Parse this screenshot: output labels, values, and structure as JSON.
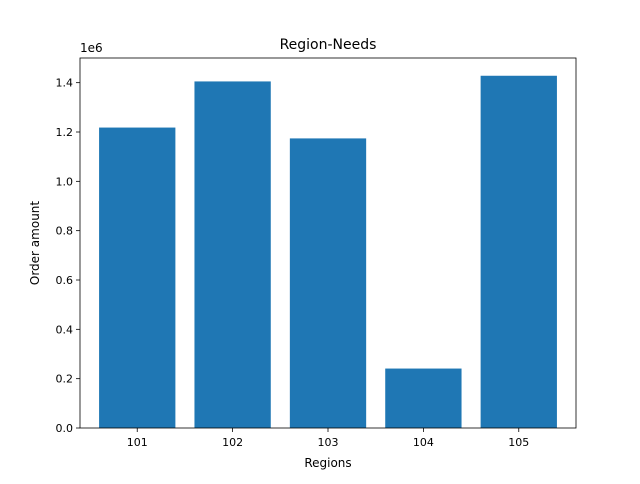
{
  "chart_data": {
    "type": "bar",
    "title": "Region-Needs",
    "xlabel": "Regions",
    "ylabel": "Order amount",
    "y_offset_label": "1e6",
    "categories": [
      "101",
      "102",
      "103",
      "104",
      "105"
    ],
    "values": [
      1218000,
      1405000,
      1174000,
      241000,
      1428000
    ],
    "ylim": [
      0,
      1500000
    ],
    "yticks": [
      0,
      200000,
      400000,
      600000,
      800000,
      1000000,
      1200000,
      1400000
    ],
    "ytick_labels": [
      "0.0",
      "0.2",
      "0.4",
      "0.6",
      "0.8",
      "1.0",
      "1.2",
      "1.4"
    ],
    "bar_color": "#1f77b4",
    "grid": false,
    "legend": "none"
  }
}
